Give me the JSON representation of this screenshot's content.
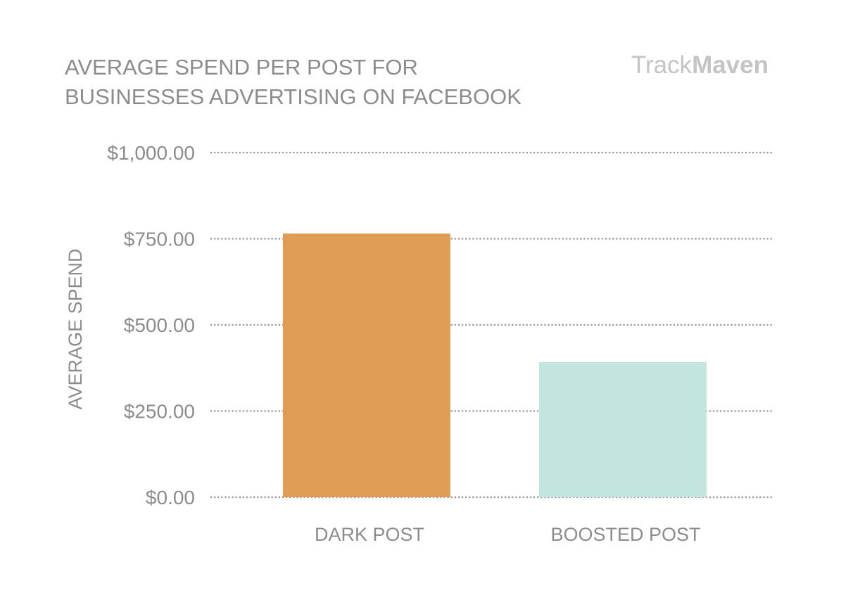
{
  "chart_data": {
    "type": "bar",
    "title_lines": [
      "AVERAGE SPEND PER POST FOR",
      "BUSINESSES ADVERTISING ON FACEBOOK"
    ],
    "brand": {
      "light": "Track",
      "bold": "Maven"
    },
    "ylabel": "AVERAGE SPEND",
    "xlabel": "",
    "categories": [
      "DARK POST",
      "BOOSTED POST"
    ],
    "values": [
      765,
      392
    ],
    "colors": [
      "#de9c55",
      "#c2e5de"
    ],
    "ylim": [
      0,
      1000
    ],
    "yticks": [
      {
        "value": 0,
        "label": "$0.00"
      },
      {
        "value": 250,
        "label": "$250.00"
      },
      {
        "value": 500,
        "label": "$500.00"
      },
      {
        "value": 750,
        "label": "$750.00"
      },
      {
        "value": 1000,
        "label": "$1,000.00"
      }
    ],
    "grid": true,
    "grid_style": "dotted",
    "legend": "none"
  }
}
